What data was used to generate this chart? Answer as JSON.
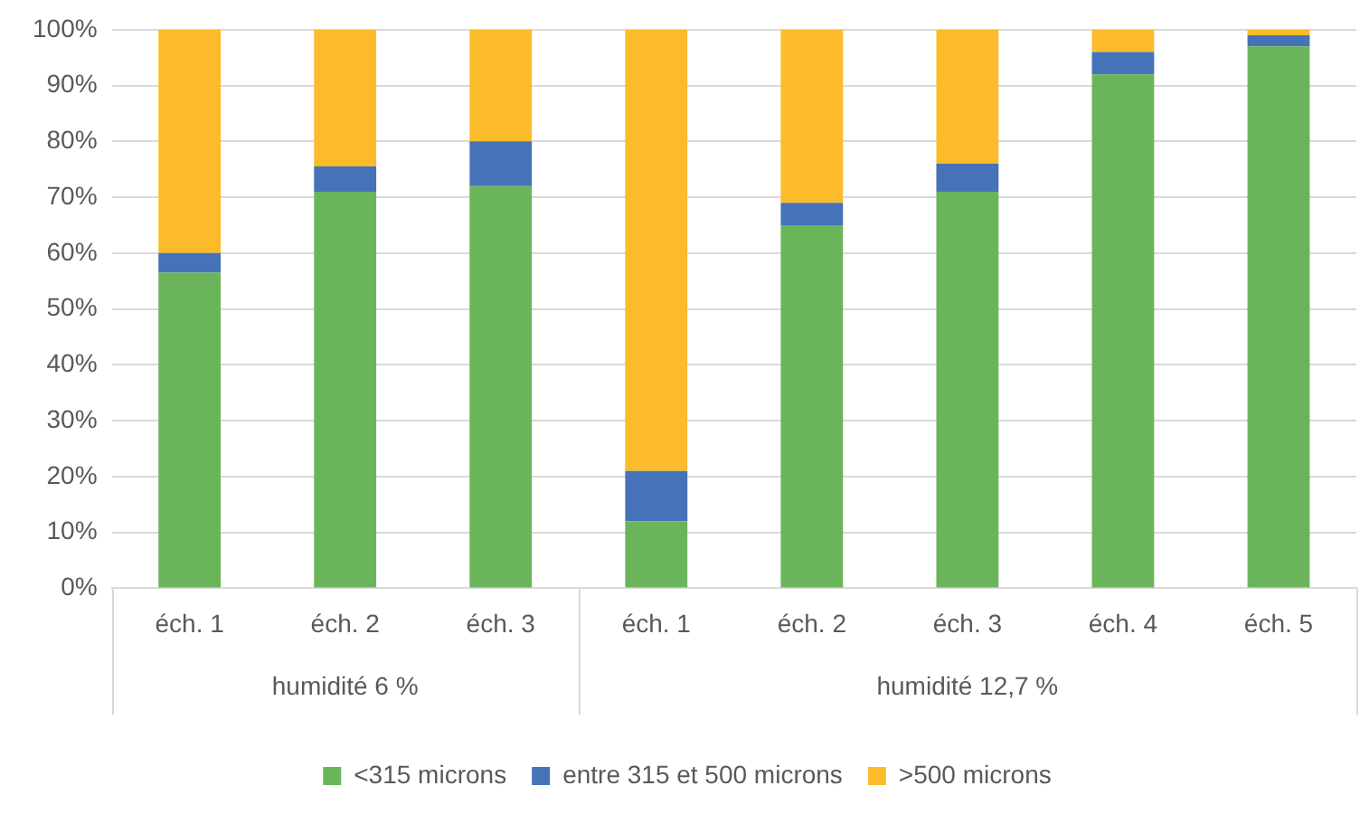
{
  "chart_data": {
    "type": "bar",
    "stacked": true,
    "categories": [
      "éch. 1",
      "éch. 2",
      "éch. 3",
      "éch. 1",
      "éch. 2",
      "éch. 3",
      "éch. 4",
      "éch. 5"
    ],
    "series": [
      {
        "name": "<315 microns",
        "color": "#6ab55a",
        "values": [
          56.5,
          71,
          72,
          12,
          65,
          71,
          92,
          97
        ]
      },
      {
        "name": "entre 315 et 500 microns",
        "color": "#4672b8",
        "values": [
          3.5,
          4.5,
          8,
          9,
          4,
          5,
          4,
          2
        ]
      },
      {
        "name": ">500 microns",
        "color": "#fbbb2b",
        "values": [
          40,
          24.5,
          20,
          79,
          31,
          24,
          4,
          1
        ]
      }
    ],
    "ylim": [
      0,
      100
    ],
    "yticks": [
      {
        "value": 0,
        "label": "0%"
      },
      {
        "value": 10,
        "label": "10%"
      },
      {
        "value": 20,
        "label": "20%"
      },
      {
        "value": 30,
        "label": "30%"
      },
      {
        "value": 40,
        "label": "40%"
      },
      {
        "value": 50,
        "label": "50%"
      },
      {
        "value": 60,
        "label": "60%"
      },
      {
        "value": 70,
        "label": "70%"
      },
      {
        "value": 80,
        "label": "80%"
      },
      {
        "value": 90,
        "label": "90%"
      },
      {
        "value": 100,
        "label": "100%"
      }
    ],
    "grid": "y",
    "legend": "bottom",
    "annotations": [
      "humidité 6 %",
      "humidité 12,7 %"
    ]
  }
}
